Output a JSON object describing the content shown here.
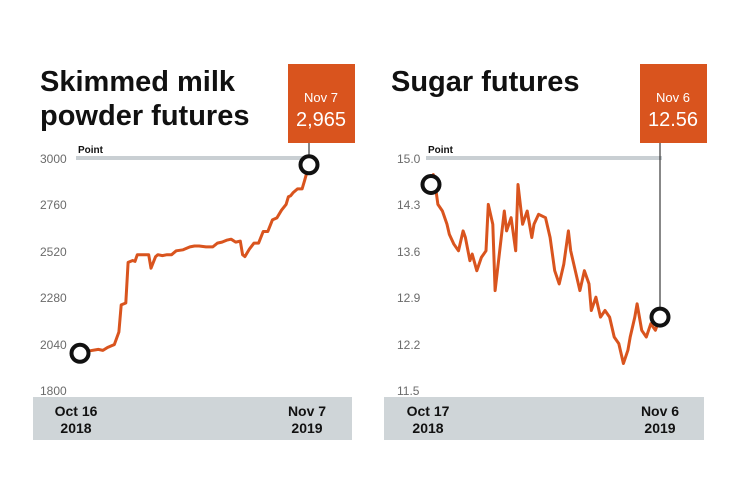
{
  "colors": {
    "line": "#d9541e",
    "callout": "#d9541e",
    "xband": "#cfd5d8",
    "refline": "#c9cfd3",
    "marker": "#111111"
  },
  "chart_data": [
    {
      "type": "line",
      "title_lines": [
        "Skimmed milk",
        "powder futures"
      ],
      "ylabel": "Point",
      "yticks": [
        "3000",
        "2760",
        "2520",
        "2280",
        "2040",
        "1800"
      ],
      "ylim": [
        1800,
        3000
      ],
      "x_start_label": [
        "Oct 16",
        "2018"
      ],
      "x_end_label": [
        "Nov 7",
        "2019"
      ],
      "callout": {
        "date": "Nov 7",
        "value": "2,965"
      },
      "x": [
        0,
        0.03,
        0.08,
        0.1,
        0.12,
        0.14,
        0.15,
        0.17,
        0.18,
        0.2,
        0.21,
        0.23,
        0.24,
        0.25,
        0.3,
        0.31,
        0.33,
        0.34,
        0.36,
        0.38,
        0.4,
        0.42,
        0.45,
        0.48,
        0.5,
        0.52,
        0.55,
        0.58,
        0.6,
        0.62,
        0.64,
        0.66,
        0.68,
        0.7,
        0.71,
        0.72,
        0.74,
        0.76,
        0.78,
        0.8,
        0.82,
        0.84,
        0.86,
        0.88,
        0.9,
        0.91,
        0.92,
        0.93,
        0.95,
        0.97,
        0.98,
        1.0
      ],
      "y": [
        1990,
        2000,
        2010,
        2005,
        2020,
        2030,
        2035,
        2100,
        2240,
        2250,
        2460,
        2470,
        2465,
        2500,
        2500,
        2430,
        2490,
        2500,
        2495,
        2500,
        2500,
        2520,
        2525,
        2540,
        2545,
        2545,
        2540,
        2540,
        2560,
        2565,
        2575,
        2580,
        2565,
        2570,
        2500,
        2490,
        2530,
        2560,
        2560,
        2620,
        2620,
        2680,
        2690,
        2730,
        2760,
        2800,
        2805,
        2820,
        2840,
        2840,
        2880,
        2965
      ]
    },
    {
      "type": "line",
      "title_lines": [
        "Sugar futures"
      ],
      "ylabel": "Point",
      "yticks": [
        "15.0",
        "14.3",
        "13.6",
        "12.9",
        "12.2",
        "11.5"
      ],
      "ylim": [
        11.5,
        15.0
      ],
      "x_start_label": [
        "Oct 17",
        "2018"
      ],
      "x_end_label": [
        "Nov 6",
        "2019"
      ],
      "callout": {
        "date": "Nov 6",
        "value": "12.56"
      },
      "x": [
        0,
        0.01,
        0.02,
        0.03,
        0.05,
        0.07,
        0.08,
        0.1,
        0.12,
        0.14,
        0.15,
        0.17,
        0.18,
        0.2,
        0.22,
        0.24,
        0.25,
        0.27,
        0.28,
        0.3,
        0.32,
        0.33,
        0.35,
        0.37,
        0.38,
        0.4,
        0.42,
        0.44,
        0.45,
        0.47,
        0.5,
        0.52,
        0.54,
        0.56,
        0.58,
        0.6,
        0.61,
        0.63,
        0.65,
        0.67,
        0.69,
        0.7,
        0.72,
        0.74,
        0.76,
        0.78,
        0.8,
        0.82,
        0.84,
        0.86,
        0.87,
        0.89,
        0.9,
        0.92,
        0.94,
        0.96,
        0.98,
        1.0
      ],
      "y": [
        14.6,
        14.75,
        14.55,
        14.3,
        14.2,
        14.0,
        13.85,
        13.7,
        13.6,
        13.9,
        13.8,
        13.45,
        13.55,
        13.3,
        13.5,
        13.6,
        14.3,
        14.0,
        13.0,
        13.6,
        14.2,
        13.9,
        14.1,
        13.6,
        14.6,
        14.0,
        14.2,
        13.8,
        14.0,
        14.15,
        14.1,
        13.8,
        13.3,
        13.1,
        13.4,
        13.9,
        13.6,
        13.3,
        13.0,
        13.3,
        13.1,
        12.7,
        12.9,
        12.6,
        12.7,
        12.6,
        12.3,
        12.2,
        11.9,
        12.1,
        12.3,
        12.6,
        12.8,
        12.4,
        12.3,
        12.5,
        12.4,
        12.6
      ]
    }
  ]
}
